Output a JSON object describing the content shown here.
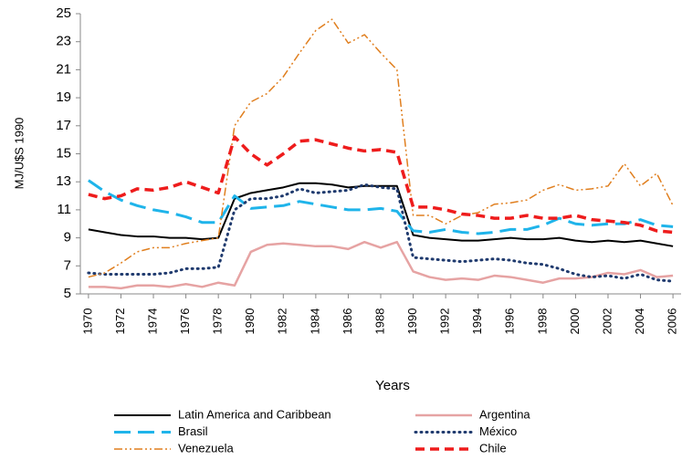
{
  "chart_data": {
    "type": "line",
    "y_label": "MJ/U$S 1990",
    "x_label": "Years",
    "x": [
      1970,
      1971,
      1972,
      1973,
      1974,
      1975,
      1976,
      1977,
      1978,
      1979,
      1980,
      1981,
      1982,
      1983,
      1984,
      1985,
      1986,
      1987,
      1988,
      1989,
      1990,
      1991,
      1992,
      1993,
      1994,
      1995,
      1996,
      1997,
      1998,
      1999,
      2000,
      2001,
      2002,
      2003,
      2004,
      2005,
      2006
    ],
    "xlim": [
      1969.5,
      2006.5
    ],
    "xticks": [
      1970,
      1972,
      1974,
      1976,
      1978,
      1980,
      1982,
      1984,
      1986,
      1988,
      1990,
      1992,
      1994,
      1996,
      1998,
      2000,
      2002,
      2004,
      2006
    ],
    "ylim": [
      5,
      25
    ],
    "yticks": [
      5,
      7,
      9,
      11,
      13,
      15,
      17,
      19,
      21,
      23,
      25
    ],
    "series": [
      {
        "name": "Latin America and Caribbean",
        "color": "#000000",
        "values": [
          9.6,
          9.4,
          9.2,
          9.1,
          9.1,
          9.0,
          9.0,
          8.9,
          9.0,
          11.8,
          12.2,
          12.4,
          12.6,
          12.9,
          12.9,
          12.8,
          12.6,
          12.7,
          12.7,
          12.7,
          9.2,
          9.0,
          8.9,
          8.8,
          8.8,
          8.9,
          9.0,
          8.9,
          8.9,
          9.0,
          8.8,
          8.7,
          8.8,
          8.7,
          8.8,
          8.6,
          8.4
        ]
      },
      {
        "name": "Argentina",
        "color": "#e6a3a3",
        "values": [
          5.5,
          5.5,
          5.4,
          5.6,
          5.6,
          5.5,
          5.7,
          5.5,
          5.8,
          5.6,
          8.0,
          8.5,
          8.6,
          8.5,
          8.4,
          8.4,
          8.2,
          8.7,
          8.3,
          8.7,
          6.6,
          6.2,
          6.0,
          6.1,
          6.0,
          6.3,
          6.2,
          6.0,
          5.8,
          6.1,
          6.1,
          6.2,
          6.5,
          6.4,
          6.7,
          6.2,
          6.3
        ]
      },
      {
        "name": "Brasil",
        "color": "#1fb4ea",
        "values": [
          13.1,
          12.3,
          11.7,
          11.3,
          11.0,
          10.8,
          10.5,
          10.1,
          10.1,
          12.0,
          11.1,
          11.2,
          11.3,
          11.6,
          11.4,
          11.2,
          11.0,
          11.0,
          11.1,
          10.9,
          9.5,
          9.4,
          9.6,
          9.4,
          9.3,
          9.4,
          9.6,
          9.6,
          9.9,
          10.4,
          10.0,
          9.9,
          10.0,
          10.0,
          10.3,
          9.9,
          9.8
        ]
      },
      {
        "name": "México",
        "color": "#1f3a6e",
        "values": [
          6.5,
          6.4,
          6.4,
          6.4,
          6.4,
          6.5,
          6.8,
          6.8,
          6.9,
          11.0,
          11.8,
          11.8,
          12.0,
          12.5,
          12.2,
          12.3,
          12.4,
          12.8,
          12.6,
          12.5,
          7.6,
          7.5,
          7.4,
          7.3,
          7.4,
          7.5,
          7.4,
          7.2,
          7.1,
          6.8,
          6.4,
          6.2,
          6.3,
          6.1,
          6.4,
          6.0,
          5.9
        ]
      },
      {
        "name": "Venezuela",
        "color": "#e07f1f",
        "values": [
          6.2,
          6.5,
          7.2,
          8.0,
          8.3,
          8.3,
          8.6,
          8.8,
          9.0,
          17.0,
          18.7,
          19.3,
          20.5,
          22.2,
          23.8,
          24.6,
          22.9,
          23.5,
          22.2,
          21.0,
          10.6,
          10.6,
          10.0,
          10.6,
          10.8,
          11.4,
          11.5,
          11.7,
          12.4,
          12.8,
          12.4,
          12.5,
          12.7,
          14.3,
          12.7,
          13.6,
          11.3
        ]
      },
      {
        "name": "Chile",
        "color": "#ee1c1c",
        "values": [
          12.1,
          11.8,
          12.0,
          12.5,
          12.4,
          12.6,
          13.0,
          12.6,
          12.2,
          16.2,
          15.0,
          14.2,
          15.0,
          15.9,
          16.0,
          15.7,
          15.4,
          15.2,
          15.3,
          15.1,
          11.2,
          11.2,
          11.0,
          10.7,
          10.6,
          10.4,
          10.4,
          10.6,
          10.4,
          10.4,
          10.6,
          10.3,
          10.2,
          10.1,
          9.9,
          9.5,
          9.4
        ]
      }
    ]
  }
}
